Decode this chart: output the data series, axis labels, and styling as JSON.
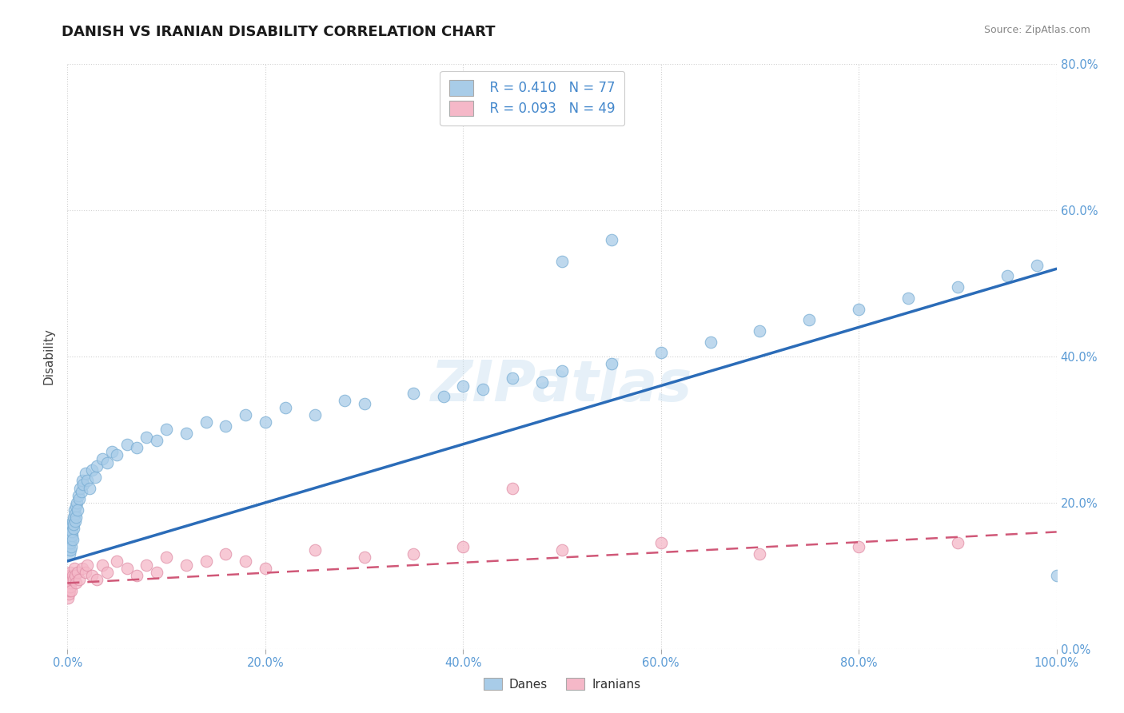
{
  "title": "DANISH VS IRANIAN DISABILITY CORRELATION CHART",
  "source": "Source: ZipAtlas.com",
  "ylabel": "Disability",
  "dane_R": "R = 0.410",
  "dane_N": "N = 77",
  "iranian_R": "R = 0.093",
  "iranian_N": "N = 49",
  "dane_color": "#A8CCE8",
  "dane_edge_color": "#7AAED4",
  "dane_line_color": "#2B6CB8",
  "iranian_color": "#F5B8C8",
  "iranian_edge_color": "#E090A8",
  "iranian_line_color": "#D05878",
  "background_color": "#FFFFFF",
  "grid_color": "#CCCCCC",
  "tick_color": "#5B9BD5",
  "xlim": [
    0,
    100
  ],
  "ylim": [
    0,
    80
  ],
  "x_ticks": [
    0,
    20,
    40,
    60,
    80,
    100
  ],
  "y_ticks": [
    0,
    20,
    40,
    60,
    80
  ],
  "dane_x": [
    0.1,
    0.15,
    0.18,
    0.2,
    0.22,
    0.25,
    0.28,
    0.3,
    0.32,
    0.35,
    0.38,
    0.4,
    0.42,
    0.45,
    0.48,
    0.5,
    0.55,
    0.58,
    0.6,
    0.65,
    0.7,
    0.75,
    0.8,
    0.85,
    0.9,
    0.95,
    1.0,
    1.1,
    1.2,
    1.3,
    1.4,
    1.5,
    1.6,
    1.8,
    2.0,
    2.2,
    2.5,
    2.8,
    3.0,
    3.5,
    4.0,
    4.5,
    5.0,
    6.0,
    7.0,
    8.0,
    9.0,
    10.0,
    12.0,
    14.0,
    16.0,
    18.0,
    20.0,
    22.0,
    25.0,
    28.0,
    30.0,
    35.0,
    38.0,
    40.0,
    42.0,
    45.0,
    48.0,
    50.0,
    55.0,
    60.0,
    65.0,
    70.0,
    75.0,
    80.0,
    85.0,
    90.0,
    95.0,
    98.0,
    100.0,
    50.0,
    55.0
  ],
  "dane_y": [
    14.0,
    13.5,
    15.0,
    13.0,
    14.5,
    15.5,
    13.5,
    16.0,
    14.5,
    15.0,
    16.5,
    14.0,
    15.5,
    17.0,
    16.0,
    15.0,
    17.5,
    16.5,
    18.0,
    17.0,
    19.0,
    18.5,
    17.5,
    19.5,
    18.0,
    20.0,
    19.0,
    21.0,
    20.5,
    22.0,
    21.5,
    23.0,
    22.5,
    24.0,
    23.0,
    22.0,
    24.5,
    23.5,
    25.0,
    26.0,
    25.5,
    27.0,
    26.5,
    28.0,
    27.5,
    29.0,
    28.5,
    30.0,
    29.5,
    31.0,
    30.5,
    32.0,
    31.0,
    33.0,
    32.0,
    34.0,
    33.5,
    35.0,
    34.5,
    36.0,
    35.5,
    37.0,
    36.5,
    38.0,
    39.0,
    40.5,
    42.0,
    43.5,
    45.0,
    46.5,
    48.0,
    49.5,
    51.0,
    52.5,
    10.0,
    53.0,
    56.0
  ],
  "iranian_x": [
    0.05,
    0.08,
    0.1,
    0.12,
    0.15,
    0.18,
    0.2,
    0.22,
    0.25,
    0.28,
    0.3,
    0.35,
    0.4,
    0.45,
    0.5,
    0.6,
    0.7,
    0.8,
    0.9,
    1.0,
    1.2,
    1.5,
    1.8,
    2.0,
    2.5,
    3.0,
    3.5,
    4.0,
    5.0,
    6.0,
    7.0,
    8.0,
    9.0,
    10.0,
    12.0,
    14.0,
    16.0,
    18.0,
    20.0,
    25.0,
    30.0,
    35.0,
    40.0,
    45.0,
    50.0,
    60.0,
    70.0,
    80.0,
    90.0
  ],
  "iranian_y": [
    7.0,
    8.0,
    7.5,
    9.0,
    8.5,
    10.0,
    9.0,
    8.0,
    9.5,
    8.5,
    10.5,
    9.0,
    8.0,
    9.5,
    10.0,
    9.5,
    11.0,
    10.0,
    9.0,
    10.5,
    9.5,
    11.0,
    10.5,
    11.5,
    10.0,
    9.5,
    11.5,
    10.5,
    12.0,
    11.0,
    10.0,
    11.5,
    10.5,
    12.5,
    11.5,
    12.0,
    13.0,
    12.0,
    11.0,
    13.5,
    12.5,
    13.0,
    14.0,
    22.0,
    13.5,
    14.5,
    13.0,
    14.0,
    14.5
  ],
  "dane_trend_x": [
    0,
    100
  ],
  "dane_trend_y": [
    12.0,
    52.0
  ],
  "iranian_trend_x": [
    0,
    100
  ],
  "iranian_trend_y": [
    9.0,
    16.0
  ]
}
